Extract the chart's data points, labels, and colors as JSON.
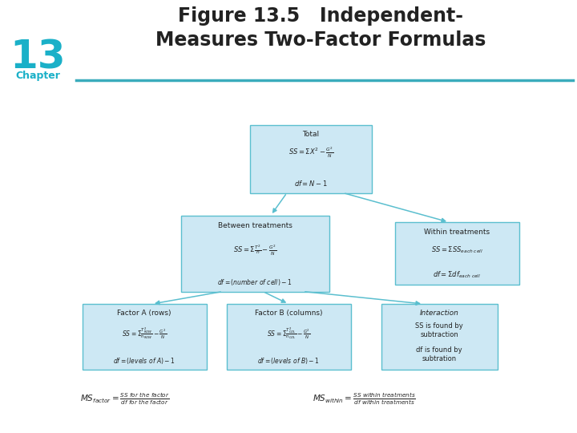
{
  "title_line1": "Figure 13.5   Independent-",
  "title_line2": "Measures Two-Factor Formulas",
  "chapter_num": "13",
  "chapter_label": "Chapter",
  "header_line_color": "#3aacbc",
  "box_fill": "#cde8f4",
  "box_edge": "#5bbfcf",
  "arrow_color": "#5bbfcf",
  "bg_color": "#ffffff",
  "title_color": "#2ab0c5",
  "chapter_color": "#1ab0c8"
}
